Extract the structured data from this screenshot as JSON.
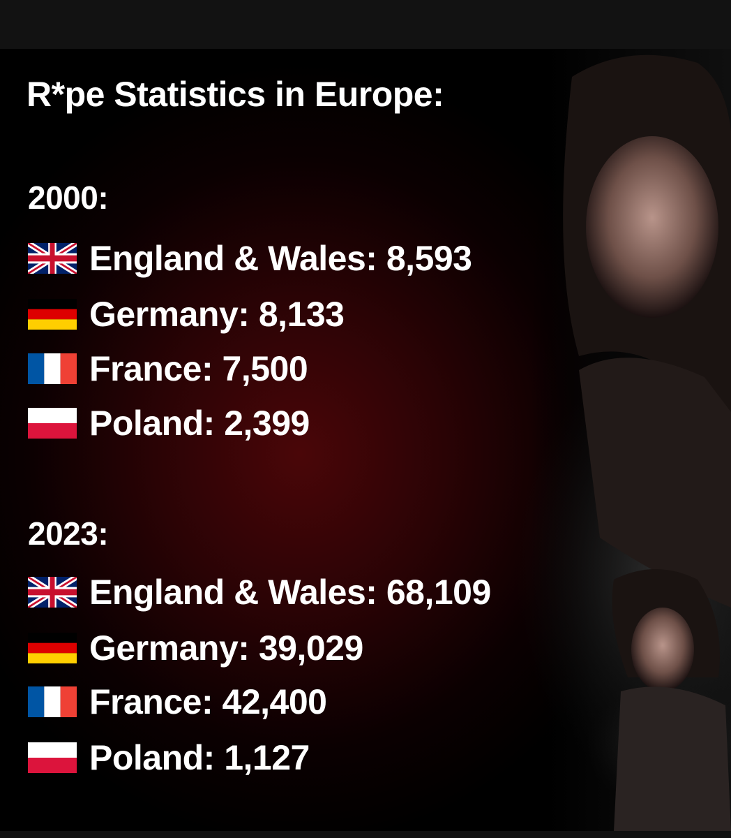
{
  "title": "R*pe Statistics in Europe:",
  "sections": [
    {
      "year": "2000:",
      "rows": [
        {
          "label": "England & Wales:",
          "value": "8,593"
        },
        {
          "label": "Germany:",
          "value": "8,133"
        },
        {
          "label": "France:",
          "value": "7,500"
        },
        {
          "label": "Poland:",
          "value": "2,399"
        }
      ]
    },
    {
      "year": "2023:",
      "rows": [
        {
          "label": "England & Wales:",
          "value": "68,109"
        },
        {
          "label": "Germany:",
          "value": "39,029"
        },
        {
          "label": "France:",
          "value": "42,400"
        },
        {
          "label": "Poland:",
          "value": "1,127"
        }
      ]
    }
  ]
}
